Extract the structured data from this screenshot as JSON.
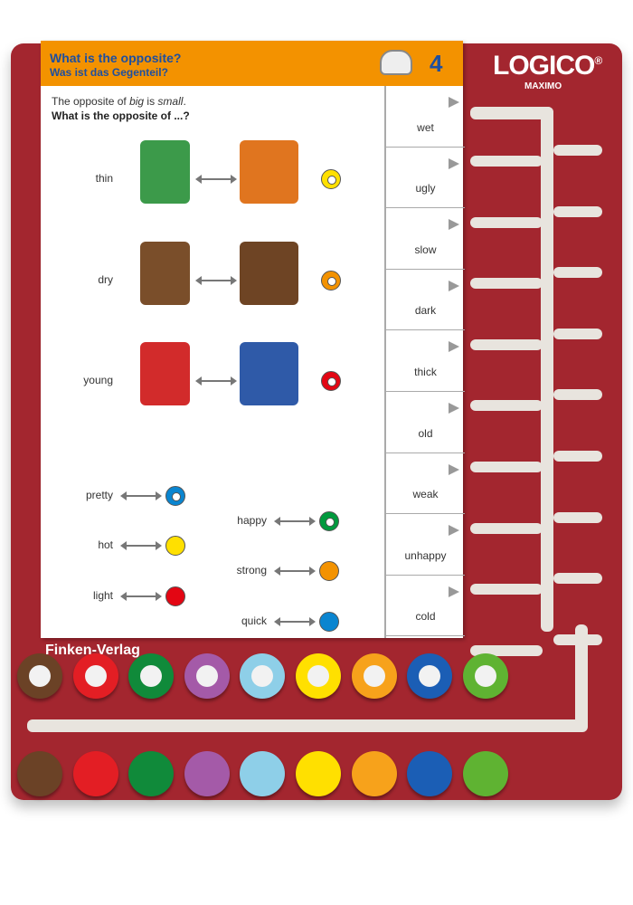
{
  "brand": {
    "logo": "LOGICO",
    "registered": "®",
    "product": "MAXIMO",
    "publisher": "Finken-Verlag"
  },
  "card": {
    "title_en": "What is the opposite?",
    "title_de": "Was ist das Gegenteil?",
    "number": "4",
    "header_icon": "burger-icon",
    "header_color": "#f39200",
    "intro_line1": "The opposite of big is small.",
    "intro_line2": "What is the opposite of ...?",
    "picture_items": [
      {
        "word": "thin",
        "color": "#ffe000",
        "marker": "ring"
      },
      {
        "word": "dry",
        "color": "#f39200",
        "marker": "ring"
      },
      {
        "word": "young",
        "color": "#e30613",
        "marker": "ring"
      }
    ],
    "word_items": [
      {
        "word": "pretty",
        "color": "#0a85d0",
        "marker": "ring"
      },
      {
        "word": "hot",
        "color": "#ffe000",
        "marker": "solid"
      },
      {
        "word": "light",
        "color": "#e30613",
        "marker": "solid"
      },
      {
        "word": "happy",
        "color": "#009a3e",
        "marker": "ring"
      },
      {
        "word": "strong",
        "color": "#f39200",
        "marker": "solid"
      },
      {
        "word": "quick",
        "color": "#0a85d0",
        "marker": "solid"
      }
    ],
    "answers": [
      "wet",
      "ugly",
      "slow",
      "dark",
      "thick",
      "old",
      "weak",
      "unhappy",
      "cold"
    ]
  },
  "pegs": [
    "#6b4226",
    "#e31e24",
    "#108a3a",
    "#a45aa8",
    "#8ecfe8",
    "#ffe000",
    "#f7a21b",
    "#1b5eb5",
    "#5fb332"
  ],
  "board_color": "#a3262f"
}
